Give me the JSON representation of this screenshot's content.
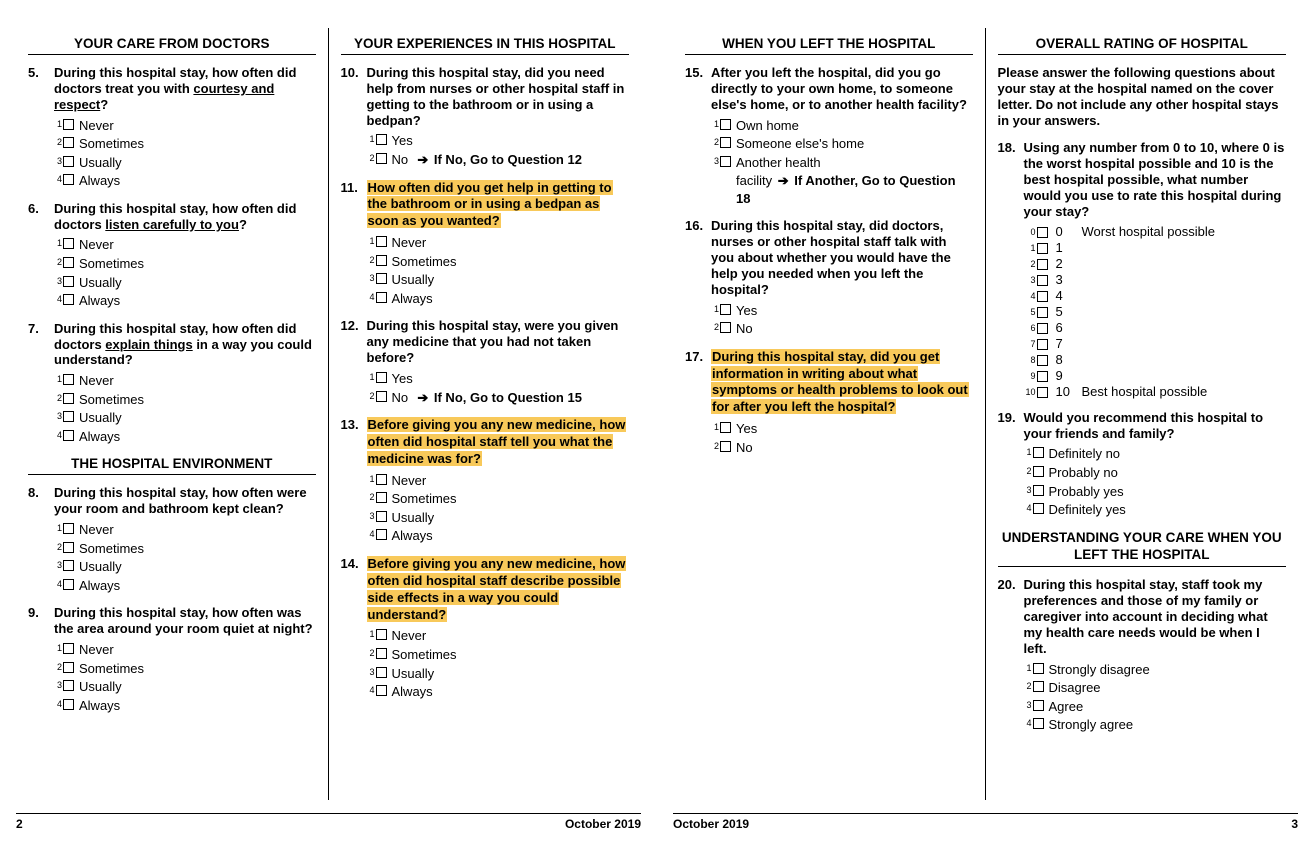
{
  "footer_date": "October 2019",
  "page_left_num": "2",
  "page_right_num": "3",
  "freq_options": [
    "Never",
    "Sometimes",
    "Usually",
    "Always"
  ],
  "yesno_options": [
    "Yes",
    "No"
  ],
  "sections": {
    "doctors": "YOUR CARE FROM DOCTORS",
    "environment": "THE HOSPITAL ENVIRONMENT",
    "experiences": "YOUR EXPERIENCES IN THIS HOSPITAL",
    "left_hospital": "WHEN YOU LEFT THE HOSPITAL",
    "overall": "OVERALL RATING OF HOSPITAL",
    "understanding": "UNDERSTANDING YOUR CARE WHEN YOU LEFT THE HOSPITAL"
  },
  "overall_intro": "Please answer the following questions about your stay at the hospital named on the cover letter. Do not include any other hospital stays in your answers.",
  "q5": {
    "num": "5.",
    "pre": "During this hospital stay, how often did doctors treat you with ",
    "u": "courtesy and respect",
    "post": "?"
  },
  "q6": {
    "num": "6.",
    "pre": "During this hospital stay, how often did doctors ",
    "u": "listen carefully to you",
    "post": "?"
  },
  "q7": {
    "num": "7.",
    "pre": "During this hospital stay, how often did doctors ",
    "u": "explain things",
    "post": " in a way you could understand?"
  },
  "q8": {
    "num": "8.",
    "text": "During this hospital stay, how often were your room and bathroom kept clean?"
  },
  "q9": {
    "num": "9.",
    "text": "During this hospital stay, how often was the area around your room quiet at night?"
  },
  "q10": {
    "num": "10.",
    "text": "During this hospital stay, did you need help from nurses or other hospital staff in getting to the bathroom or in using a bedpan?",
    "skip": "If No, Go to Question 12"
  },
  "q11": {
    "num": "11.",
    "text": "How often did you get help in getting to the bathroom or in using a bedpan as soon as you wanted?"
  },
  "q12": {
    "num": "12.",
    "text": "During this hospital stay, were you given any medicine that you had not taken before?",
    "skip": "If No, Go to Question 15"
  },
  "q13": {
    "num": "13.",
    "text": "Before giving you any new medicine, how often did hospital staff tell you what the medicine was for?"
  },
  "q14": {
    "num": "14.",
    "text": "Before giving you any new medicine, how often did hospital staff describe possible side effects in a way you could understand?"
  },
  "q15": {
    "num": "15.",
    "text": "After you left the hospital, did you go directly to your own home, to someone else's home, or to another health facility?",
    "opts": [
      "Own home",
      "Someone else's home",
      "Another health facility"
    ],
    "skip": "If Another, Go to Question 18"
  },
  "q16": {
    "num": "16.",
    "text": "During this hospital stay, did doctors, nurses or other hospital staff talk with you about whether you would have the help you needed when you left the hospital?"
  },
  "q17": {
    "num": "17.",
    "text": "During this hospital stay, did you get information in writing about what symptoms or health problems to look out for after you left the hospital?"
  },
  "q18": {
    "num": "18.",
    "text": "Using any number from 0 to 10, where 0 is the worst hospital possible and 10 is the best hospital possible, what number would you use to rate this hospital during your stay?",
    "scale_low": "Worst hospital possible",
    "scale_high": "Best hospital possible"
  },
  "q19": {
    "num": "19.",
    "text": "Would you recommend this hospital to your friends and family?",
    "opts": [
      "Definitely no",
      "Probably no",
      "Probably yes",
      "Definitely yes"
    ]
  },
  "q20": {
    "num": "20.",
    "text": "During this hospital stay, staff took my preferences and those of my family or caregiver into account in deciding what my health care needs would be when I left.",
    "opts": [
      "Strongly disagree",
      "Disagree",
      "Agree",
      "Strongly agree"
    ]
  },
  "colors": {
    "highlight": "#f8c95a",
    "text": "#000000",
    "background": "#ffffff"
  }
}
